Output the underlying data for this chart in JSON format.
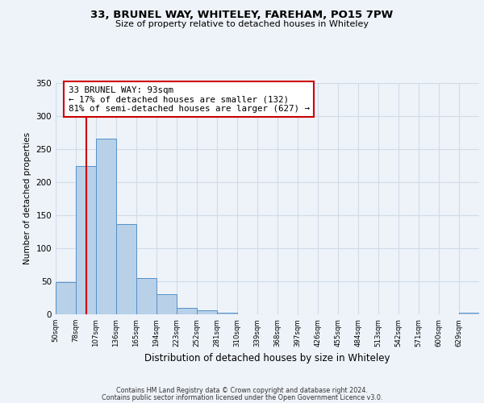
{
  "title1": "33, BRUNEL WAY, WHITELEY, FAREHAM, PO15 7PW",
  "title2": "Size of property relative to detached houses in Whiteley",
  "xlabel": "Distribution of detached houses by size in Whiteley",
  "ylabel": "Number of detached properties",
  "bin_labels": [
    "50sqm",
    "78sqm",
    "107sqm",
    "136sqm",
    "165sqm",
    "194sqm",
    "223sqm",
    "252sqm",
    "281sqm",
    "310sqm",
    "339sqm",
    "368sqm",
    "397sqm",
    "426sqm",
    "455sqm",
    "484sqm",
    "513sqm",
    "542sqm",
    "571sqm",
    "600sqm",
    "629sqm"
  ],
  "bar_heights": [
    49,
    224,
    265,
    136,
    55,
    31,
    10,
    6,
    2,
    0,
    0,
    0,
    0,
    0,
    0,
    0,
    0,
    0,
    0,
    0,
    2
  ],
  "bar_color": "#b8d0e8",
  "bar_edge_color": "#5590c8",
  "grid_color": "#d0dce8",
  "background_color": "#eef3f9",
  "annotation_title": "33 BRUNEL WAY: 93sqm",
  "annotation_line1": "← 17% of detached houses are smaller (132)",
  "annotation_line2": "81% of semi-detached houses are larger (627) →",
  "annotation_box_color": "#ffffff",
  "annotation_border_color": "#cc0000",
  "vline_color": "#cc0000",
  "ylim": [
    0,
    350
  ],
  "yticks": [
    0,
    50,
    100,
    150,
    200,
    250,
    300,
    350
  ],
  "footer1": "Contains HM Land Registry data © Crown copyright and database right 2024.",
  "footer2": "Contains public sector information licensed under the Open Government Licence v3.0."
}
